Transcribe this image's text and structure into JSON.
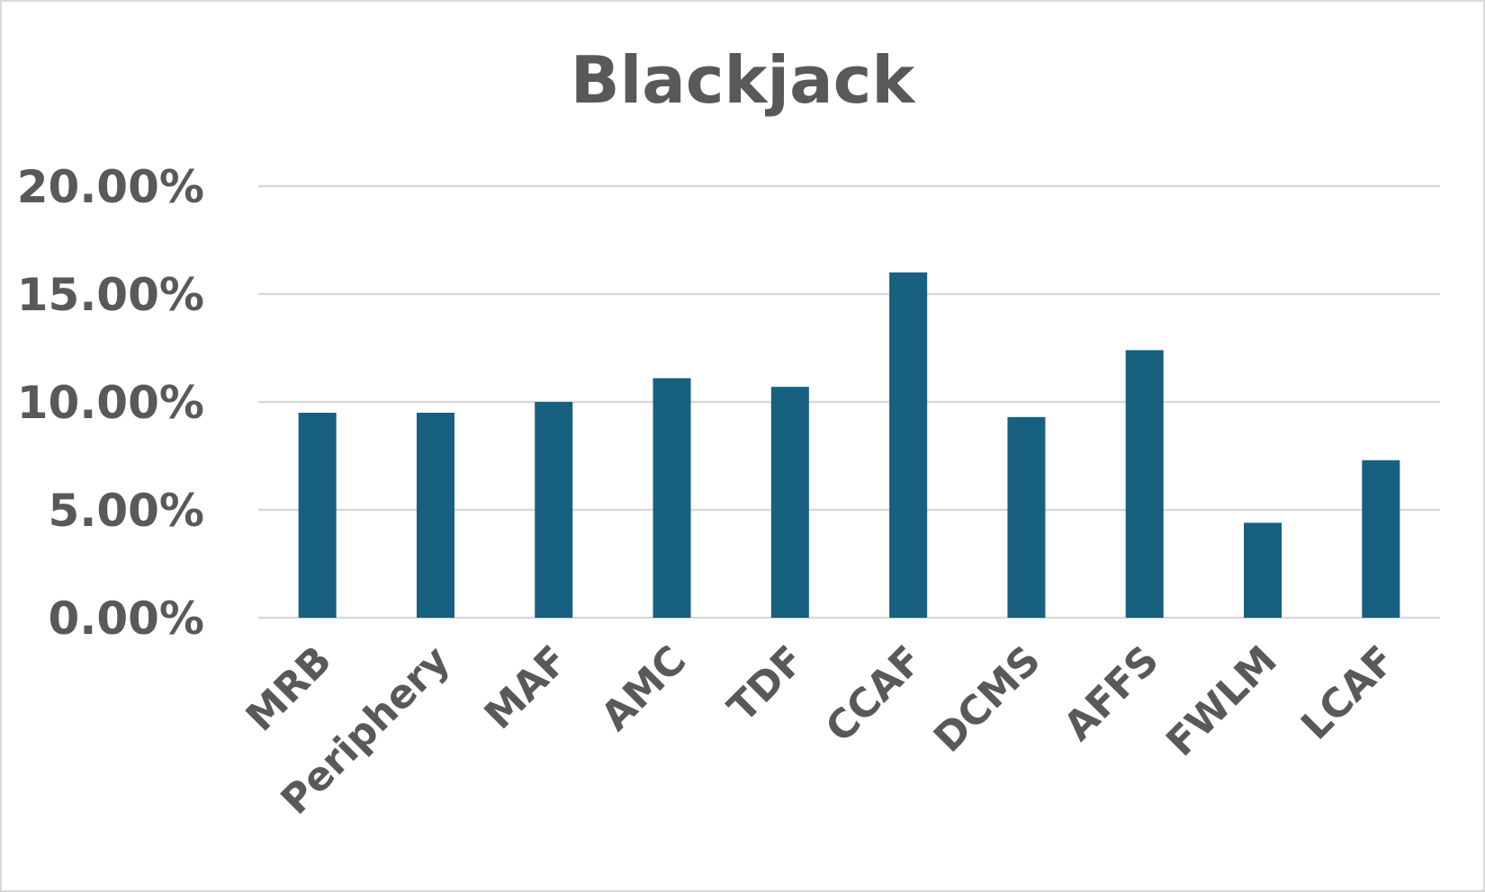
{
  "chart_data": {
    "type": "bar",
    "title": "Blackjack",
    "xlabel": "",
    "ylabel": "",
    "categories": [
      "MRB",
      "Periphery",
      "MAF",
      "AMC",
      "TDF",
      "CCAF",
      "DCMS",
      "AFFS",
      "FWLM",
      "LCAF"
    ],
    "values": [
      9.5,
      9.5,
      10.0,
      11.1,
      10.7,
      16.0,
      9.3,
      12.4,
      4.4,
      7.3
    ],
    "value_format": "percent",
    "ylim": [
      0,
      20
    ],
    "yticks": [
      0,
      5,
      10,
      15,
      20
    ],
    "ytick_labels": [
      "0.00%",
      "5.00%",
      "10.00%",
      "15.00%",
      "20.00%"
    ],
    "grid": true,
    "legend": "none",
    "colors": {
      "bar": "#17607f",
      "text": "#595959",
      "grid": "#d9d9d9"
    }
  }
}
